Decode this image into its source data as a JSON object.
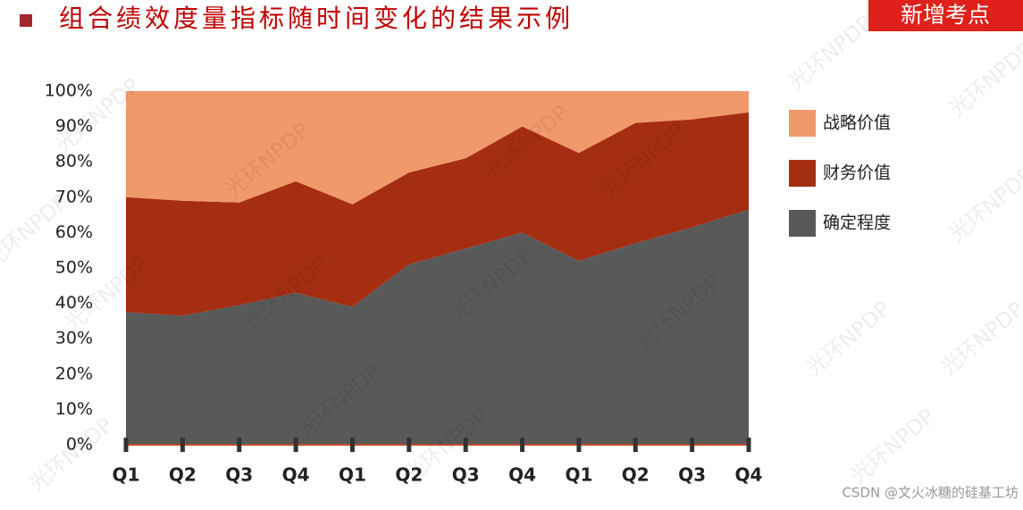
{
  "header": {
    "title": "组合绩效度量指标随时间变化的结果示例",
    "badge": "新增考点"
  },
  "watermark": "光环NPDP",
  "footer": "CSDN @文火冰糖的硅基工坊",
  "chart_data": {
    "type": "stacked_area",
    "categories": [
      "Q1",
      "Q2",
      "Q3",
      "Q4",
      "Q1",
      "Q2",
      "Q3",
      "Q4",
      "Q1",
      "Q2",
      "Q3",
      "Q4"
    ],
    "series": [
      {
        "name": "确定程度",
        "color": "#595959",
        "values": [
          37.5,
          36.5,
          39.5,
          43,
          39,
          51,
          55.5,
          60,
          52,
          57,
          61.5,
          66.5
        ]
      },
      {
        "name": "财务价值",
        "color": "#a52d12",
        "values": [
          32.5,
          32.5,
          29,
          31.5,
          29,
          26,
          25.5,
          30,
          30.5,
          34,
          30.5,
          27.5
        ]
      },
      {
        "name": "战略价值",
        "color": "#f0996b",
        "values": [
          30,
          31,
          31.5,
          25.5,
          32,
          23,
          19,
          10,
          17.5,
          9,
          8,
          6
        ]
      }
    ],
    "ylim": [
      0,
      100
    ],
    "yticks": [
      {
        "value": 0,
        "label": "0%"
      },
      {
        "value": 10,
        "label": "10%"
      },
      {
        "value": 20,
        "label": "20%"
      },
      {
        "value": 30,
        "label": "30%"
      },
      {
        "value": 40,
        "label": "40%"
      },
      {
        "value": 50,
        "label": "50%"
      },
      {
        "value": 60,
        "label": "60%"
      },
      {
        "value": 70,
        "label": "70%"
      },
      {
        "value": 80,
        "label": "80%"
      },
      {
        "value": 90,
        "label": "90%"
      },
      {
        "value": 100,
        "label": "100%"
      }
    ],
    "legend": "right"
  }
}
